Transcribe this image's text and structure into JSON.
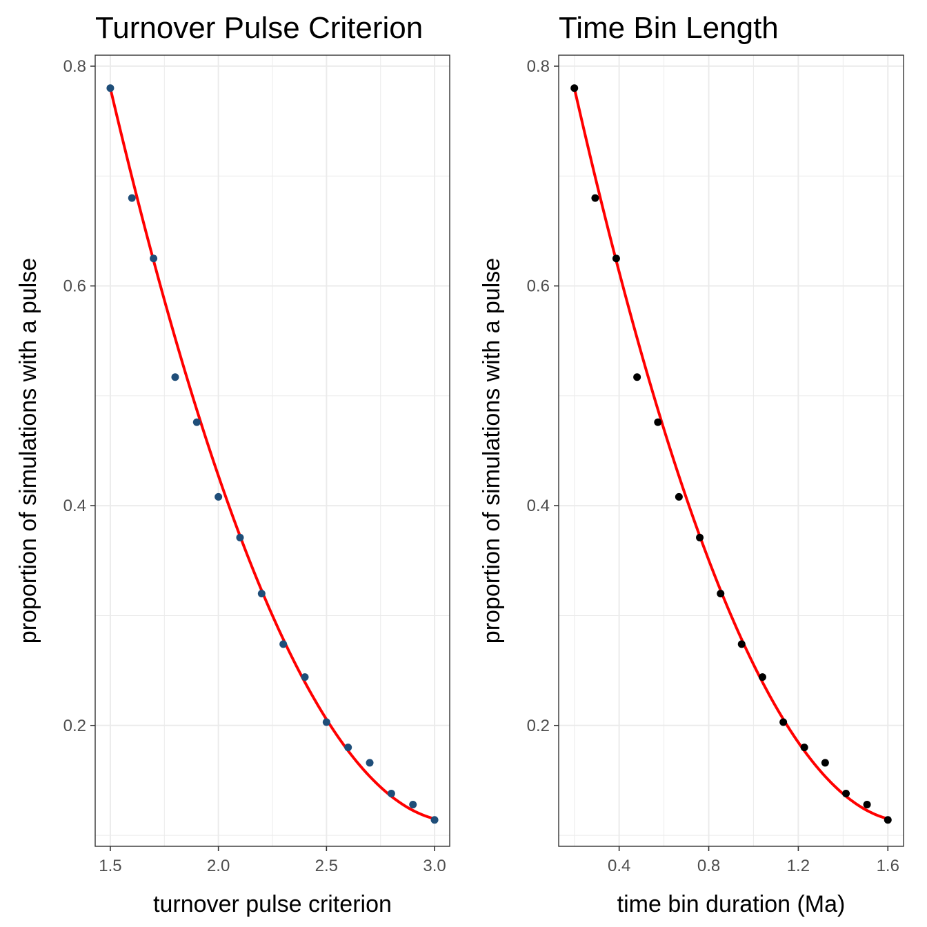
{
  "chart_data": [
    {
      "type": "scatter",
      "title": "Turnover Pulse Criterion",
      "xlabel": "turnover pulse criterion",
      "ylabel": "proportion of simulations with a pulse",
      "xlim": [
        1.43,
        3.07
      ],
      "ylim": [
        0.09,
        0.81
      ],
      "xticks": [
        "1.5",
        "2.0",
        "2.5",
        "3.0"
      ],
      "xtick_values": [
        1.5,
        2.0,
        2.5,
        3.0
      ],
      "yticks": [
        "0.2",
        "0.4",
        "0.6",
        "0.8"
      ],
      "ytick_values": [
        0.2,
        0.4,
        0.6,
        0.8
      ],
      "grid": true,
      "point_color": "#1f4e79",
      "line_color": "#ff0000",
      "x": [
        1.5,
        1.6,
        1.7,
        1.8,
        1.9,
        2.0,
        2.1,
        2.2,
        2.3,
        2.4,
        2.5,
        2.6,
        2.7,
        2.8,
        2.9,
        3.0
      ],
      "y": [
        0.78,
        0.68,
        0.625,
        0.517,
        0.476,
        0.408,
        0.371,
        0.32,
        0.274,
        0.244,
        0.203,
        0.18,
        0.166,
        0.138,
        0.128,
        0.114
      ],
      "fit": {
        "x": [
          1.5,
          2.25,
          3.0
        ],
        "y": [
          0.78,
          0.3,
          0.115
        ]
      }
    },
    {
      "type": "scatter",
      "title": "Time Bin Length",
      "xlabel": "time bin duration (Ma)",
      "ylabel": "proportion of simulations with a pulse",
      "xlim": [
        0.13,
        1.67
      ],
      "ylim": [
        0.09,
        0.81
      ],
      "xticks": [
        "0.4",
        "0.8",
        "1.2",
        "1.6"
      ],
      "xtick_values": [
        0.4,
        0.8,
        1.2,
        1.6
      ],
      "yticks": [
        "0.2",
        "0.4",
        "0.6",
        "0.8"
      ],
      "ytick_values": [
        0.2,
        0.4,
        0.6,
        0.8
      ],
      "grid": true,
      "point_color": "#000000",
      "line_color": "#ff0000",
      "x": [
        0.2,
        0.293,
        0.387,
        0.48,
        0.573,
        0.667,
        0.76,
        0.853,
        0.947,
        1.04,
        1.133,
        1.227,
        1.32,
        1.413,
        1.507,
        1.6
      ],
      "y": [
        0.78,
        0.68,
        0.625,
        0.517,
        0.476,
        0.408,
        0.371,
        0.32,
        0.274,
        0.244,
        0.203,
        0.18,
        0.166,
        0.138,
        0.128,
        0.114
      ],
      "fit": {
        "x": [
          0.2,
          0.9,
          1.6
        ],
        "y": [
          0.78,
          0.3,
          0.115
        ]
      }
    }
  ]
}
